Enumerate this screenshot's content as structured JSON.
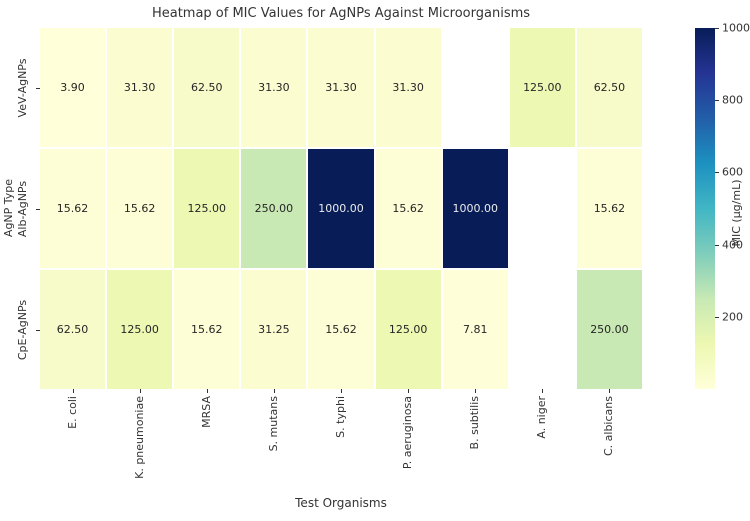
{
  "title": "Heatmap of MIC Values for AgNPs Against Microorganisms",
  "chart_data": {
    "type": "heatmap",
    "title": "Heatmap of MIC Values for AgNPs Against Microorganisms",
    "xlabel": "Test Organisms",
    "ylabel": "AgNP Type",
    "columns": [
      "E. coli",
      "K. pneumoniae",
      "MRSA",
      "S. mutans",
      "S. typhi",
      "P. aeruginosa",
      "B. subtilis",
      "A. niger",
      "C. albicans"
    ],
    "rows": [
      "VeV-AgNPs",
      "Alb-AgNPs",
      "CpE-AgNPs"
    ],
    "values": [
      [
        3.9,
        31.3,
        62.5,
        31.3,
        31.3,
        31.3,
        null,
        125.0,
        62.5
      ],
      [
        15.62,
        15.62,
        125.0,
        250.0,
        1000.0,
        15.62,
        1000.0,
        null,
        15.62
      ],
      [
        62.5,
        125.0,
        15.62,
        31.25,
        15.62,
        125.0,
        7.81,
        null,
        250.0
      ]
    ],
    "annotations": [
      [
        "3.90",
        "31.30",
        "62.50",
        "31.30",
        "31.30",
        "31.30",
        "",
        "125.00",
        "62.50"
      ],
      [
        "15.62",
        "15.62",
        "125.00",
        "250.00",
        "1000.00",
        "15.62",
        "1000.00",
        "",
        "15.62"
      ],
      [
        "62.50",
        "125.00",
        "15.62",
        "31.25",
        "15.62",
        "125.00",
        "7.81",
        "",
        "250.00"
      ]
    ],
    "cell_colors": {
      "3.90": "#ffffd9",
      "7.81": "#fefed8",
      "15.62": "#fdfed5",
      "31.25": "#fbfdd1",
      "31.30": "#fbfdd1",
      "62.50": "#f7fbca",
      "125.00": "#edf8b3",
      "250.00": "#c8e9b4",
      "1000.00": "#081d58"
    },
    "nan_color": "#ffffff",
    "annot_color_dark": "#262626",
    "annot_color_light": "#ebebeb",
    "light_text_min_value": 500,
    "grid_on": false,
    "colorbar": {
      "label": "MIC (µg/mL)",
      "vmin": 0,
      "vmax": 1000,
      "ticks": [
        {
          "value": 1000,
          "label": "1000"
        },
        {
          "value": 800,
          "label": "800"
        },
        {
          "value": 600,
          "label": "600"
        },
        {
          "value": 400,
          "label": "400"
        },
        {
          "value": 200,
          "label": "200"
        }
      ],
      "colormap": "YlGnBu",
      "gradient_stops": [
        "#ffffd9",
        "#edf8b1",
        "#c7e9b4",
        "#7fcdbb",
        "#41b6c4",
        "#1d91c0",
        "#225ea8",
        "#253494",
        "#081d58"
      ]
    }
  }
}
